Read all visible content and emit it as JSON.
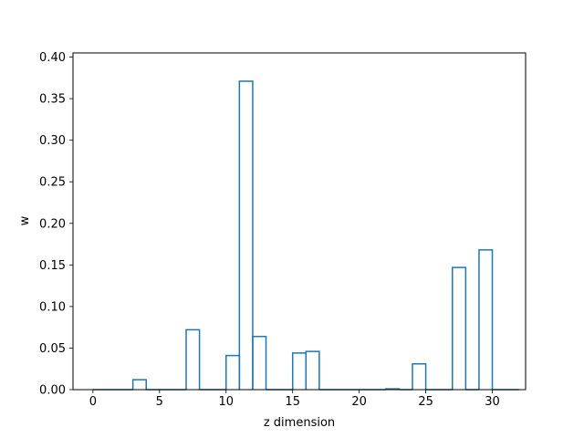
{
  "chart_data": {
    "type": "bar",
    "style": "step-histogram",
    "xlabel": "z dimension",
    "ylabel": "w",
    "xlim": [
      -1.5,
      32.5
    ],
    "ylim": [
      0,
      0.405
    ],
    "x": [
      0,
      1,
      2,
      3,
      4,
      5,
      6,
      7,
      8,
      9,
      10,
      11,
      12,
      13,
      14,
      15,
      16,
      17,
      18,
      19,
      20,
      21,
      22,
      23,
      24,
      25,
      26,
      27,
      28,
      29,
      30,
      31
    ],
    "values": [
      0,
      0,
      0,
      0.012,
      0,
      0,
      0,
      0.072,
      0,
      0,
      0.041,
      0.371,
      0.064,
      0,
      0,
      0.044,
      0.046,
      0,
      0,
      0,
      0,
      0,
      0.001,
      0,
      0.031,
      0,
      0,
      0.147,
      0,
      0.168,
      0,
      0
    ],
    "xticks": [
      0,
      5,
      10,
      15,
      20,
      25,
      30
    ],
    "xtick_labels": [
      "0",
      "5",
      "10",
      "15",
      "20",
      "25",
      "30"
    ],
    "yticks": [
      0,
      0.05,
      0.1,
      0.15,
      0.2,
      0.25,
      0.3,
      0.35,
      0.4
    ],
    "ytick_labels": [
      "0.00",
      "0.05",
      "0.10",
      "0.15",
      "0.20",
      "0.25",
      "0.30",
      "0.35",
      "0.40"
    ],
    "grid": false,
    "color": "#1f77b4"
  }
}
